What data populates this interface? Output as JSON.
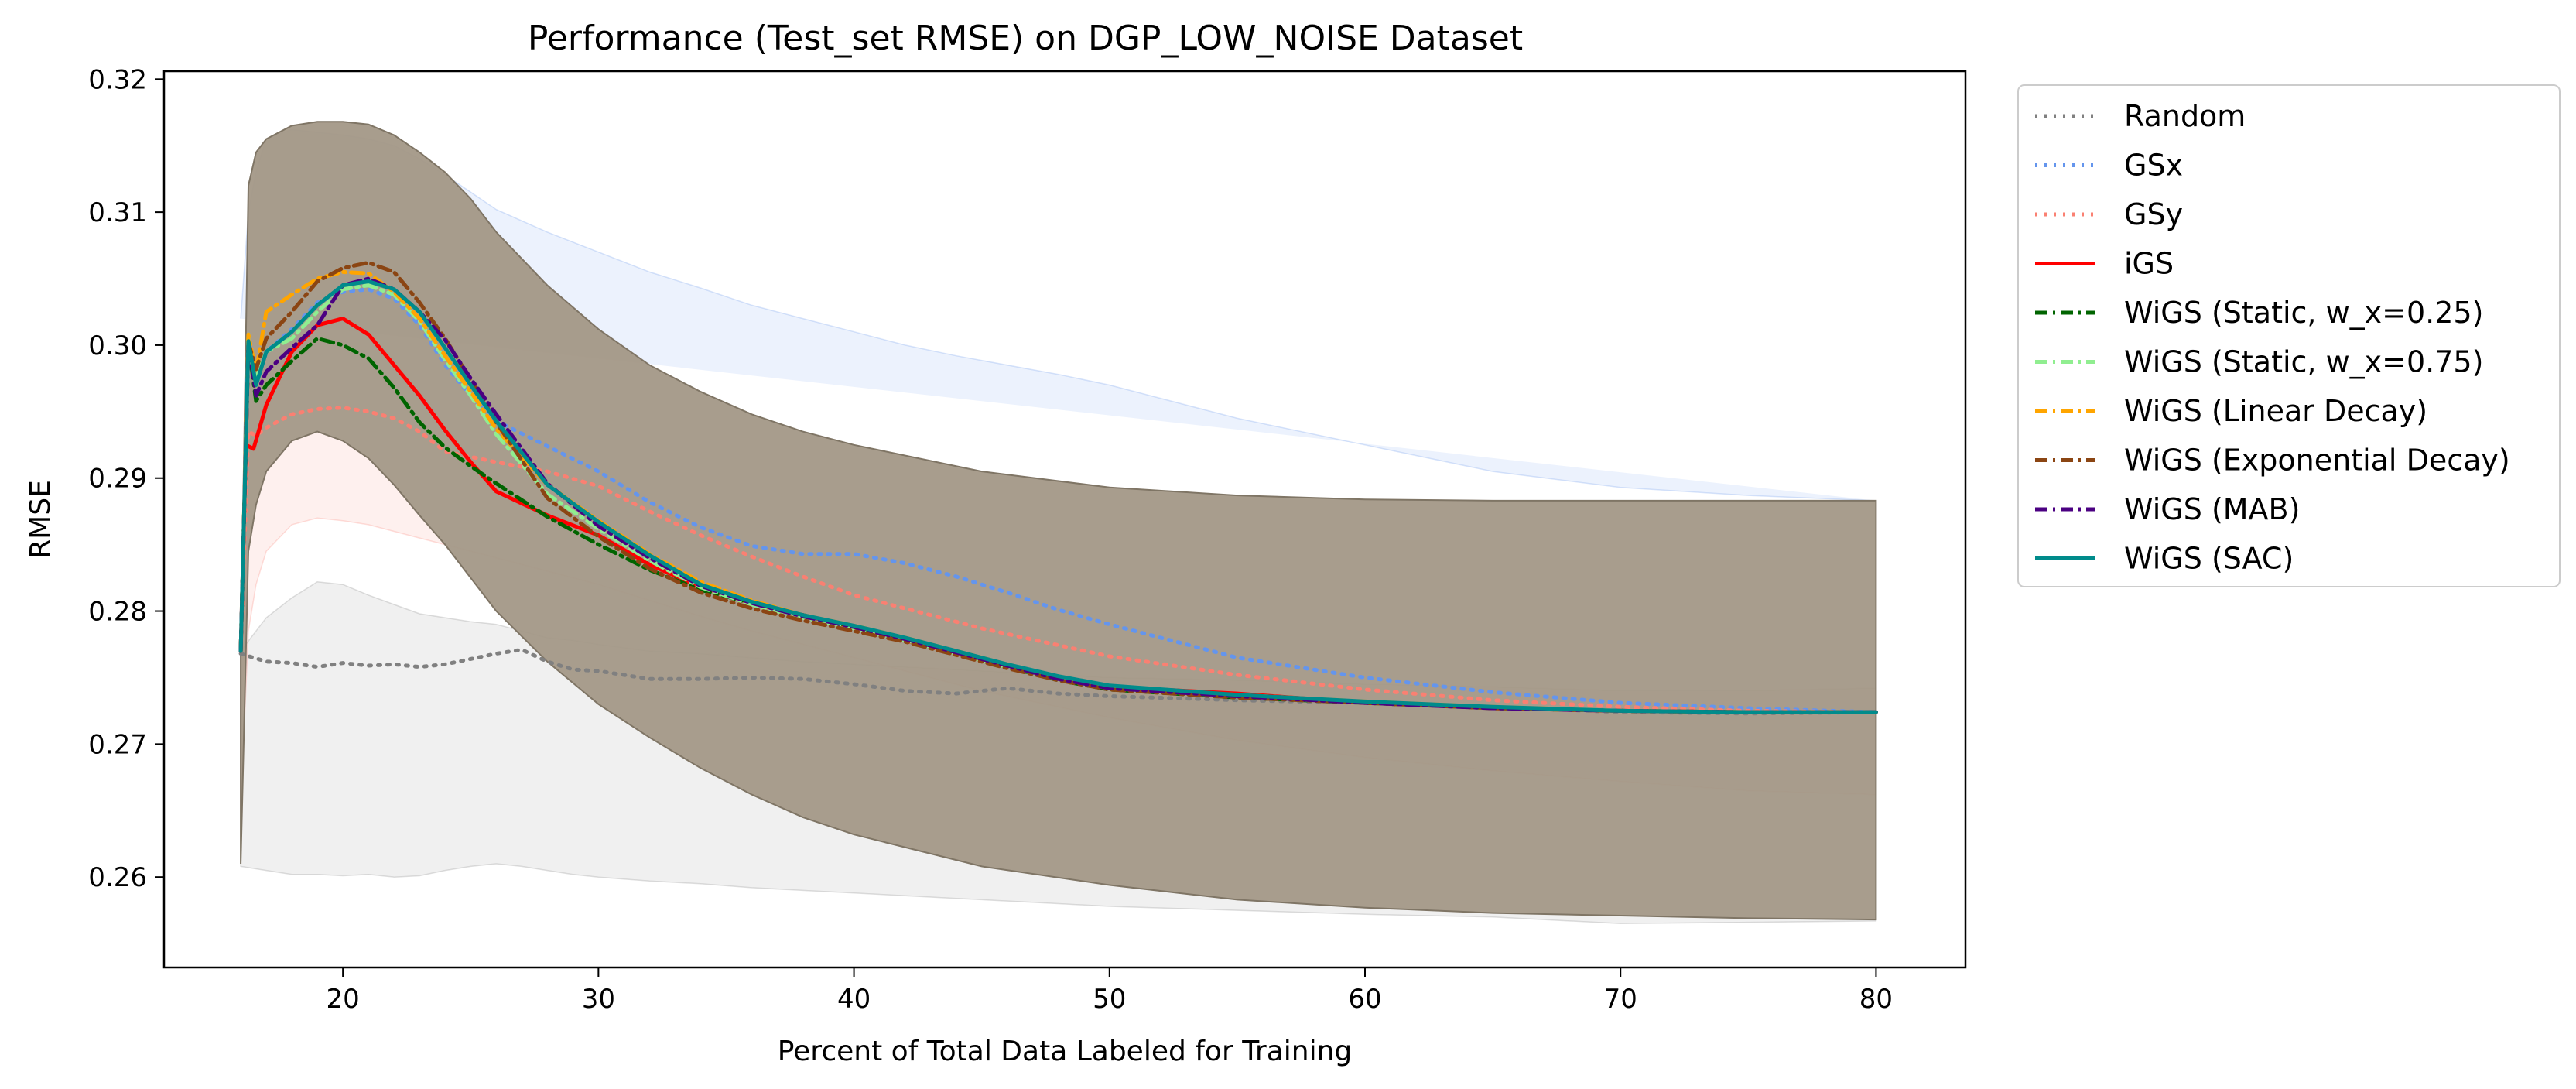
{
  "chart_data": {
    "type": "line",
    "title": "Performance (Test_set RMSE) on DGP_LOW_NOISE Dataset",
    "xlabel": "Percent of Total Data Labeled for Training",
    "ylabel": "RMSE",
    "xlim": [
      13,
      83.5
    ],
    "ylim": [
      0.2532,
      0.3206
    ],
    "xticks": [
      20,
      30,
      40,
      50,
      60,
      70,
      80
    ],
    "yticks": [
      0.26,
      0.27,
      0.28,
      0.29,
      0.3,
      0.31,
      0.32
    ],
    "xtick_labels": [
      "20",
      "30",
      "40",
      "50",
      "60",
      "70",
      "80"
    ],
    "ytick_labels": [
      "0.26",
      "0.27",
      "0.28",
      "0.29",
      "0.30",
      "0.31",
      "0.32"
    ],
    "legend_position": "outside-right",
    "grid": false,
    "band_color": "#a39887",
    "series": [
      {
        "name": "Random",
        "color": "#808080",
        "style": "dotted",
        "x": [
          16,
          17,
          18,
          19,
          20,
          21,
          22,
          23,
          24,
          25,
          26,
          27,
          28,
          29,
          30,
          32,
          34,
          36,
          38,
          40,
          42,
          44,
          46,
          48,
          50,
          55,
          60,
          65,
          70,
          75,
          80
        ],
        "y": [
          0.2768,
          0.2762,
          0.2761,
          0.2758,
          0.2761,
          0.2759,
          0.276,
          0.2758,
          0.276,
          0.2764,
          0.2768,
          0.2771,
          0.2762,
          0.2756,
          0.2755,
          0.2749,
          0.2749,
          0.275,
          0.2749,
          0.2745,
          0.274,
          0.2738,
          0.2742,
          0.2738,
          0.2736,
          0.2733,
          0.2731,
          0.2728,
          0.2724,
          0.2723,
          0.2724
        ],
        "band_upper": [
          0.277,
          0.2795,
          0.281,
          0.2822,
          0.282,
          0.2812,
          0.2805,
          0.2798,
          0.2795,
          0.2792,
          0.279,
          0.2785,
          0.278,
          0.2778,
          0.2775,
          0.277,
          0.2768,
          0.2765,
          0.2762,
          0.276,
          0.2758,
          0.2756,
          0.2754,
          0.2752,
          0.275,
          0.2748,
          0.2745,
          0.2743,
          0.274,
          0.274,
          0.2742
        ],
        "band_lower": [
          0.2608,
          0.2605,
          0.2602,
          0.2602,
          0.2601,
          0.2602,
          0.26,
          0.2601,
          0.2605,
          0.2608,
          0.261,
          0.2608,
          0.2605,
          0.2602,
          0.26,
          0.2597,
          0.2595,
          0.2592,
          0.259,
          0.2588,
          0.2586,
          0.2584,
          0.2582,
          0.258,
          0.2578,
          0.2575,
          0.2572,
          0.257,
          0.2565,
          0.2566,
          0.2567
        ]
      },
      {
        "name": "GSx",
        "color": "#6495ed",
        "style": "dotted",
        "x": [
          16,
          16.3,
          16.6,
          17,
          18,
          19,
          20,
          21,
          22,
          23,
          24,
          25,
          26,
          28,
          30,
          32,
          34,
          36,
          38,
          40,
          42,
          44,
          46,
          48,
          50,
          55,
          60,
          65,
          70,
          75,
          80
        ],
        "y": [
          0.277,
          0.3005,
          0.297,
          0.2995,
          0.3012,
          0.3032,
          0.304,
          0.3042,
          0.3035,
          0.3015,
          0.2985,
          0.2962,
          0.2943,
          0.2924,
          0.2905,
          0.2882,
          0.2863,
          0.2849,
          0.2843,
          0.2843,
          0.2836,
          0.2826,
          0.2814,
          0.2801,
          0.279,
          0.2765,
          0.275,
          0.2739,
          0.2731,
          0.2727,
          0.2724
        ],
        "band_upper": [
          0.302,
          0.31,
          0.313,
          0.3155,
          0.3162,
          0.316,
          0.3158,
          0.3155,
          0.315,
          0.314,
          0.3128,
          0.3115,
          0.3102,
          0.3085,
          0.307,
          0.3055,
          0.3043,
          0.303,
          0.302,
          0.301,
          0.3,
          0.2992,
          0.2985,
          0.2978,
          0.297,
          0.2945,
          0.2925,
          0.2905,
          0.2893,
          0.2887,
          0.2883
        ]
      },
      {
        "name": "GSy",
        "color": "#fa8072",
        "style": "dotted",
        "x": [
          16,
          16.3,
          16.6,
          17,
          18,
          19,
          20,
          21,
          22,
          23,
          24,
          25,
          26,
          28,
          30,
          32,
          34,
          36,
          38,
          40,
          45,
          50,
          55,
          60,
          65,
          70,
          75,
          80
        ],
        "y": [
          0.277,
          0.2935,
          0.2932,
          0.2938,
          0.2948,
          0.2952,
          0.2953,
          0.295,
          0.2945,
          0.2935,
          0.292,
          0.2916,
          0.2912,
          0.2905,
          0.2894,
          0.2875,
          0.2857,
          0.2841,
          0.2826,
          0.2812,
          0.2787,
          0.2766,
          0.2752,
          0.2741,
          0.2733,
          0.2728,
          0.2725,
          0.2724
        ],
        "band_lower": [
          0.265,
          0.2785,
          0.282,
          0.2845,
          0.2865,
          0.287,
          0.2868,
          0.2865,
          0.286,
          0.2855,
          0.285,
          0.2845,
          0.284,
          0.283,
          0.282,
          0.2808,
          0.2796,
          0.2785,
          0.2775,
          0.2765,
          0.274,
          0.272,
          0.2703,
          0.269,
          0.268,
          0.2672,
          0.2665,
          0.2662
        ]
      },
      {
        "name": "iGS",
        "color": "#ff0000",
        "style": "solid",
        "x": [
          16,
          16.2,
          16.5,
          17,
          17.5,
          18,
          19,
          20,
          21,
          22,
          23,
          24,
          25,
          26,
          28,
          30,
          32,
          34,
          36,
          38,
          40,
          42,
          44,
          46,
          48,
          50,
          55,
          60,
          65,
          70,
          75,
          80
        ],
        "y": [
          0.277,
          0.2925,
          0.2922,
          0.2955,
          0.2975,
          0.2995,
          0.3015,
          0.302,
          0.3008,
          0.2985,
          0.2962,
          0.2936,
          0.2912,
          0.289,
          0.2872,
          0.2857,
          0.2835,
          0.2818,
          0.2806,
          0.2797,
          0.2788,
          0.2778,
          0.2768,
          0.2759,
          0.275,
          0.2743,
          0.2738,
          0.2731,
          0.2727,
          0.2725,
          0.2724,
          0.2724
        ]
      },
      {
        "name": "WiGS (Static, w_x=0.25)",
        "color": "#006400",
        "style": "dashdot",
        "x": [
          16,
          16.3,
          16.6,
          17,
          18,
          19,
          20,
          21,
          22,
          23,
          24,
          25,
          26,
          28,
          30,
          32,
          34,
          36,
          38,
          40,
          42,
          44,
          46,
          48,
          50,
          55,
          60,
          65,
          70,
          75,
          80
        ],
        "y": [
          0.277,
          0.3002,
          0.2958,
          0.297,
          0.2988,
          0.3005,
          0.3,
          0.299,
          0.2968,
          0.2942,
          0.2923,
          0.2909,
          0.2896,
          0.2871,
          0.285,
          0.2831,
          0.2816,
          0.2806,
          0.2797,
          0.2788,
          0.2779,
          0.2769,
          0.2758,
          0.2748,
          0.2741,
          0.2735,
          0.2731,
          0.2727,
          0.2725,
          0.2724,
          0.2724
        ]
      },
      {
        "name": "WiGS (Static, w_x=0.75)",
        "color": "#90ee90",
        "style": "dashdot",
        "x": [
          16,
          16.3,
          16.6,
          17,
          18,
          19,
          20,
          21,
          22,
          23,
          24,
          25,
          26,
          28,
          30,
          32,
          34,
          36,
          38,
          40,
          42,
          44,
          46,
          48,
          50,
          55,
          60,
          65,
          70,
          75,
          80
        ],
        "y": [
          0.277,
          0.3008,
          0.2975,
          0.2995,
          0.3005,
          0.3025,
          0.3042,
          0.3045,
          0.3038,
          0.3018,
          0.2989,
          0.2962,
          0.2933,
          0.2888,
          0.2862,
          0.2838,
          0.2818,
          0.2805,
          0.2795,
          0.2787,
          0.2778,
          0.2768,
          0.2758,
          0.2749,
          0.2742,
          0.2736,
          0.2731,
          0.2727,
          0.2725,
          0.2724,
          0.2724
        ]
      },
      {
        "name": "WiGS (Linear Decay)",
        "color": "#ffa500",
        "style": "dashdot",
        "x": [
          16,
          16.3,
          16.6,
          17,
          18,
          19,
          20,
          21,
          22,
          23,
          24,
          25,
          26,
          28,
          30,
          32,
          34,
          36,
          38,
          40,
          42,
          44,
          46,
          48,
          50,
          55,
          60,
          65,
          70,
          75,
          80
        ],
        "y": [
          0.277,
          0.3008,
          0.298,
          0.3025,
          0.3038,
          0.305,
          0.3055,
          0.3054,
          0.304,
          0.302,
          0.2992,
          0.2965,
          0.2937,
          0.2895,
          0.2868,
          0.2843,
          0.2822,
          0.2808,
          0.2797,
          0.2789,
          0.278,
          0.277,
          0.276,
          0.275,
          0.2743,
          0.2737,
          0.2732,
          0.2728,
          0.2725,
          0.2724,
          0.2724
        ]
      },
      {
        "name": "WiGS (Exponential Decay)",
        "color": "#8b4513",
        "style": "dashdot",
        "x": [
          16,
          16.3,
          16.6,
          17,
          18,
          19,
          20,
          21,
          22,
          23,
          24,
          25,
          26,
          28,
          30,
          32,
          34,
          36,
          38,
          40,
          42,
          44,
          46,
          48,
          50,
          55,
          60,
          65,
          70,
          75,
          80
        ],
        "y": [
          0.277,
          0.3002,
          0.2982,
          0.3005,
          0.3025,
          0.3048,
          0.3058,
          0.3062,
          0.3055,
          0.3032,
          0.3005,
          0.2974,
          0.2942,
          0.2885,
          0.2856,
          0.2832,
          0.2814,
          0.2802,
          0.2793,
          0.2785,
          0.2777,
          0.2767,
          0.2757,
          0.2748,
          0.2741,
          0.2735,
          0.2731,
          0.2727,
          0.2725,
          0.2724,
          0.2724
        ]
      },
      {
        "name": "WiGS (MAB)",
        "color": "#4b0082",
        "style": "dashdot",
        "x": [
          16,
          16.3,
          16.6,
          17,
          18,
          19,
          20,
          21,
          22,
          23,
          24,
          25,
          26,
          28,
          30,
          32,
          34,
          36,
          38,
          40,
          42,
          44,
          46,
          48,
          50,
          55,
          60,
          65,
          70,
          75,
          80
        ],
        "y": [
          0.277,
          0.3002,
          0.2962,
          0.298,
          0.2998,
          0.3015,
          0.3045,
          0.305,
          0.3042,
          0.3025,
          0.3004,
          0.2975,
          0.2948,
          0.2896,
          0.2864,
          0.284,
          0.2819,
          0.2806,
          0.2796,
          0.2788,
          0.2779,
          0.2769,
          0.2759,
          0.2749,
          0.2742,
          0.2736,
          0.2731,
          0.2727,
          0.2725,
          0.2724,
          0.2724
        ]
      },
      {
        "name": "WiGS (SAC)",
        "color": "#008b8b",
        "style": "solid",
        "x": [
          16,
          16.3,
          16.6,
          17,
          18,
          19,
          20,
          21,
          22,
          23,
          24,
          25,
          26,
          28,
          30,
          32,
          34,
          36,
          38,
          40,
          42,
          44,
          46,
          48,
          50,
          55,
          60,
          65,
          70,
          75,
          80
        ],
        "y": [
          0.277,
          0.3003,
          0.297,
          0.2995,
          0.301,
          0.303,
          0.3045,
          0.3048,
          0.3042,
          0.3025,
          0.2998,
          0.297,
          0.2943,
          0.2895,
          0.2867,
          0.2842,
          0.282,
          0.2807,
          0.2797,
          0.2789,
          0.278,
          0.277,
          0.276,
          0.2751,
          0.2744,
          0.2737,
          0.2732,
          0.2728,
          0.2725,
          0.2724,
          0.2724
        ]
      }
    ],
    "merged_band": {
      "x": [
        16,
        16.3,
        16.6,
        17,
        18,
        19,
        20,
        21,
        22,
        23,
        24,
        25,
        26,
        28,
        30,
        32,
        34,
        36,
        38,
        40,
        45,
        50,
        55,
        60,
        65,
        70,
        75,
        80
      ],
      "upper": [
        0.277,
        0.312,
        0.3145,
        0.3155,
        0.3165,
        0.3168,
        0.3168,
        0.3166,
        0.3158,
        0.3145,
        0.313,
        0.311,
        0.3085,
        0.3045,
        0.3012,
        0.2985,
        0.2965,
        0.2948,
        0.2935,
        0.2925,
        0.2905,
        0.2893,
        0.2887,
        0.2884,
        0.2883,
        0.2883,
        0.2883,
        0.2883
      ],
      "lower": [
        0.261,
        0.2845,
        0.288,
        0.2905,
        0.2928,
        0.2935,
        0.2928,
        0.2915,
        0.2895,
        0.2872,
        0.285,
        0.2825,
        0.28,
        0.2762,
        0.273,
        0.2705,
        0.2682,
        0.2662,
        0.2645,
        0.2632,
        0.2608,
        0.2594,
        0.2583,
        0.2577,
        0.2573,
        0.2571,
        0.2569,
        0.2568
      ]
    }
  }
}
